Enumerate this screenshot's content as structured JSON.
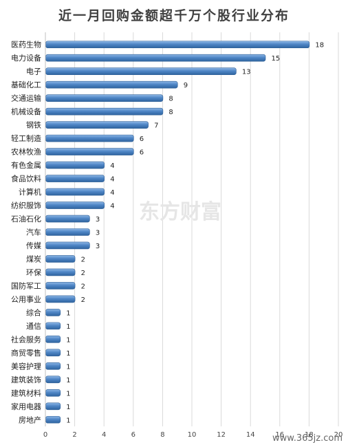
{
  "chart_data": {
    "type": "bar",
    "orientation": "horizontal",
    "title": "近一月回购金额超千万个股行业分布",
    "categories": [
      "医药生物",
      "电力设备",
      "电子",
      "基础化工",
      "交通运输",
      "机械设备",
      "钢铁",
      "轻工制造",
      "农林牧渔",
      "有色金属",
      "食品饮料",
      "计算机",
      "纺织服饰",
      "石油石化",
      "汽车",
      "传媒",
      "煤炭",
      "环保",
      "国防军工",
      "公用事业",
      "综合",
      "通信",
      "社会服务",
      "商贸零售",
      "美容护理",
      "建筑装饰",
      "建筑材料",
      "家用电器",
      "房地产"
    ],
    "values": [
      18,
      15,
      13,
      9,
      8,
      8,
      7,
      6,
      6,
      4,
      4,
      4,
      4,
      3,
      3,
      3,
      2,
      2,
      2,
      2,
      1,
      1,
      1,
      1,
      1,
      1,
      1,
      1,
      1
    ],
    "xlim": [
      0,
      20
    ],
    "xticks": [
      "0",
      "2",
      "4",
      "6",
      "8",
      "10",
      "12",
      "14",
      "16",
      "18",
      "20"
    ],
    "grid": true,
    "bar_color": "#4f86c6"
  },
  "watermark": "东方财富",
  "site": "www.365jz.com"
}
